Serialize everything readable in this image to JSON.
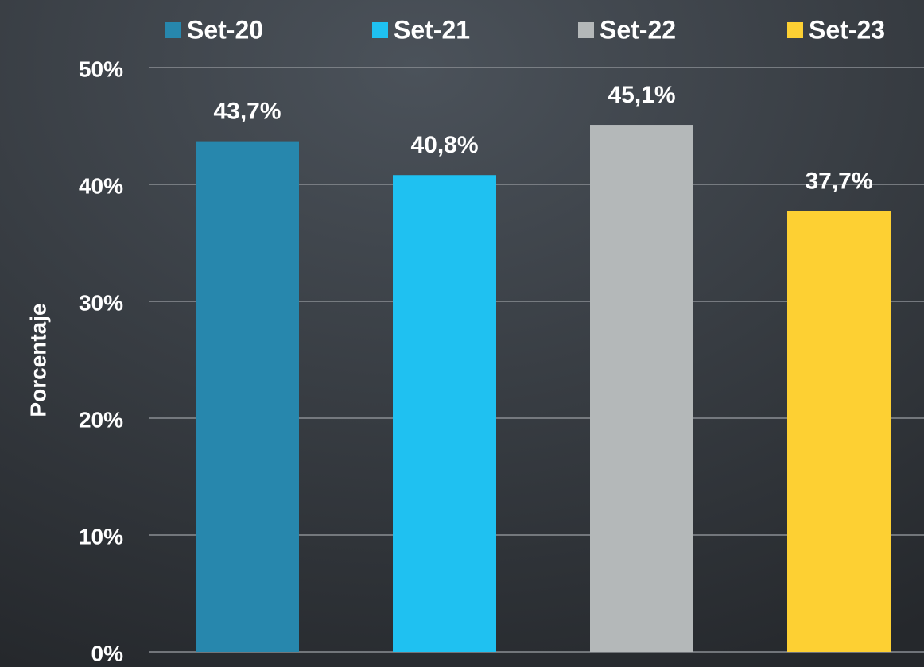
{
  "chart_data": {
    "type": "bar",
    "y_label": "Porcentaje",
    "categories": [
      null
    ],
    "series": [
      {
        "name": "Set-20",
        "color": "#2787ad",
        "values": [
          43.7
        ],
        "value_labels": [
          "43,7%"
        ]
      },
      {
        "name": "Set-21",
        "color": "#1fc1f1",
        "values": [
          40.8
        ],
        "value_labels": [
          "40,8%"
        ]
      },
      {
        "name": "Set-22",
        "color": "#b4b8b9",
        "values": [
          45.1
        ],
        "value_labels": [
          "45,1%"
        ]
      },
      {
        "name": "Set-23",
        "color": "#fdd033",
        "values": [
          37.7
        ],
        "value_labels": [
          "37,7%"
        ]
      }
    ],
    "ylim": [
      0,
      50
    ],
    "yticks": [
      {
        "value": 0,
        "label": "0%"
      },
      {
        "value": 10,
        "label": "10%"
      },
      {
        "value": 20,
        "label": "20%"
      },
      {
        "value": 30,
        "label": "30%"
      },
      {
        "value": 40,
        "label": "40%"
      },
      {
        "value": 50,
        "label": "50%"
      }
    ],
    "grid": true,
    "legend": "top"
  }
}
